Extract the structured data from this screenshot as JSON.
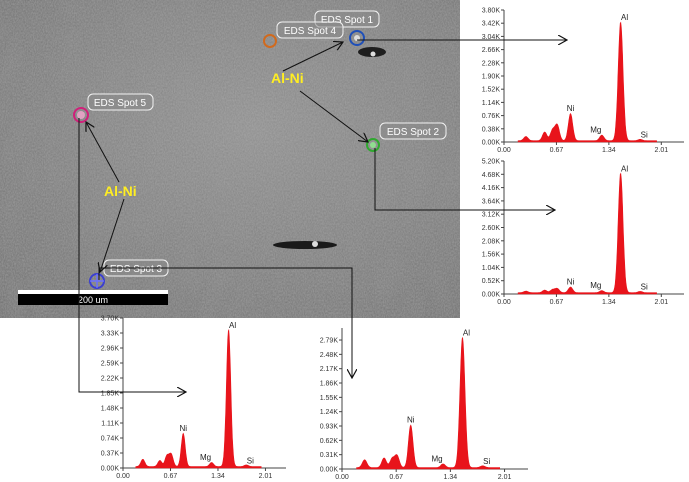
{
  "scale_bar": {
    "label": "200 um"
  },
  "spots": [
    {
      "id": 1,
      "label": "EDS Spot 1",
      "color": "#1f4fb8"
    },
    {
      "id": 2,
      "label": "EDS Spot 2",
      "color": "#2fa82f"
    },
    {
      "id": 3,
      "label": "EDS Spot 3",
      "color": "#3b3fd0"
    },
    {
      "id": 4,
      "label": "EDS Spot 4",
      "color": "#d06a1e"
    },
    {
      "id": 5,
      "label": "EDS Spot 5",
      "color": "#d0207a"
    }
  ],
  "phase_labels": [
    "Al-Ni",
    "Al-Ni"
  ],
  "colors": {
    "phase_label": "#ffee22",
    "spectrum": "#e8141b",
    "arrow": "#111111"
  },
  "chart_data": [
    {
      "type": "area",
      "spot": "EDS Spot 1",
      "y_ticks": [
        "0.00K",
        "0.38K",
        "0.76K",
        "1.14K",
        "1.52K",
        "1.90K",
        "2.28K",
        "2.66K",
        "3.04K",
        "3.42K",
        "3.80K"
      ],
      "ylim": [
        0,
        3.8
      ],
      "x_ticks": [
        "0.00",
        "0.67",
        "1.34",
        "2.01"
      ],
      "xlim": [
        0,
        2.3
      ],
      "peaks": [
        {
          "x": 0.28,
          "y": 0.12
        },
        {
          "x": 0.52,
          "y": 0.25
        },
        {
          "x": 0.62,
          "y": 0.3
        },
        {
          "x": 0.68,
          "y": 0.45
        },
        {
          "x": 0.85,
          "y": 0.78
        },
        {
          "x": 1.25,
          "y": 0.16
        },
        {
          "x": 1.49,
          "y": 3.42
        },
        {
          "x": 1.74,
          "y": 0.04
        }
      ],
      "peak_labels": [
        {
          "text": "Al",
          "x": 1.49,
          "y": 3.42
        },
        {
          "text": "Ni",
          "x": 0.85,
          "y": 0.78
        },
        {
          "text": "Mg",
          "x": 1.25,
          "y": 0.16
        },
        {
          "text": "Si",
          "x": 1.74,
          "y": 0.04
        }
      ]
    },
    {
      "type": "area",
      "spot": "EDS Spot 2",
      "y_ticks": [
        "0.00K",
        "0.52K",
        "1.04K",
        "1.56K",
        "2.08K",
        "2.60K",
        "3.12K",
        "3.64K",
        "4.16K",
        "4.68K",
        "5.20K"
      ],
      "ylim": [
        0,
        5.2
      ],
      "x_ticks": [
        "0.00",
        "0.67",
        "1.34",
        "2.01"
      ],
      "xlim": [
        0,
        2.3
      ],
      "peaks": [
        {
          "x": 0.28,
          "y": 0.06
        },
        {
          "x": 0.52,
          "y": 0.1
        },
        {
          "x": 0.62,
          "y": 0.12
        },
        {
          "x": 0.68,
          "y": 0.16
        },
        {
          "x": 0.85,
          "y": 0.22
        },
        {
          "x": 1.25,
          "y": 0.08
        },
        {
          "x": 1.49,
          "y": 4.68
        },
        {
          "x": 1.74,
          "y": 0.05
        }
      ],
      "peak_labels": [
        {
          "text": "Al",
          "x": 1.49,
          "y": 4.68
        },
        {
          "text": "Ni",
          "x": 0.85,
          "y": 0.22
        },
        {
          "text": "Mg",
          "x": 1.25,
          "y": 0.08
        },
        {
          "text": "Si",
          "x": 1.74,
          "y": 0.05
        }
      ]
    },
    {
      "type": "area",
      "spot": "EDS Spot 5",
      "y_ticks": [
        "0.00K",
        "0.37K",
        "0.74K",
        "1.11K",
        "1.48K",
        "1.85K",
        "2.22K",
        "2.59K",
        "2.96K",
        "3.33K",
        "3.70K"
      ],
      "ylim": [
        0,
        3.7
      ],
      "x_ticks": [
        "0.00",
        "0.67",
        "1.34",
        "2.01"
      ],
      "xlim": [
        0,
        2.3
      ],
      "peaks": [
        {
          "x": 0.28,
          "y": 0.18
        },
        {
          "x": 0.52,
          "y": 0.15
        },
        {
          "x": 0.62,
          "y": 0.26
        },
        {
          "x": 0.68,
          "y": 0.3
        },
        {
          "x": 0.85,
          "y": 0.82
        },
        {
          "x": 1.25,
          "y": 0.1
        },
        {
          "x": 1.49,
          "y": 3.38
        },
        {
          "x": 1.74,
          "y": 0.04
        }
      ],
      "peak_labels": [
        {
          "text": "Al",
          "x": 1.49,
          "y": 3.38
        },
        {
          "text": "Ni",
          "x": 0.85,
          "y": 0.82
        },
        {
          "text": "Mg",
          "x": 1.25,
          "y": 0.1
        },
        {
          "text": "Si",
          "x": 1.74,
          "y": 0.04
        }
      ]
    },
    {
      "type": "area",
      "spot": "EDS Spot 4",
      "y_ticks": [
        "0.00K",
        "0.31K",
        "0.62K",
        "0.93K",
        "1.24K",
        "1.55K",
        "1.86K",
        "2.17K",
        "2.48K",
        "2.79K"
      ],
      "ylim": [
        0,
        3.05
      ],
      "x_ticks": [
        "0.00",
        "0.67",
        "1.34",
        "2.01"
      ],
      "xlim": [
        0,
        2.3
      ],
      "peaks": [
        {
          "x": 0.28,
          "y": 0.17
        },
        {
          "x": 0.52,
          "y": 0.21
        },
        {
          "x": 0.62,
          "y": 0.19
        },
        {
          "x": 0.68,
          "y": 0.26
        },
        {
          "x": 0.85,
          "y": 0.92
        },
        {
          "x": 1.25,
          "y": 0.08
        },
        {
          "x": 1.49,
          "y": 2.82
        },
        {
          "x": 1.74,
          "y": 0.04
        }
      ],
      "peak_labels": [
        {
          "text": "Al",
          "x": 1.49,
          "y": 2.82
        },
        {
          "text": "Ni",
          "x": 0.85,
          "y": 0.92
        },
        {
          "text": "Mg",
          "x": 1.25,
          "y": 0.08
        },
        {
          "text": "Si",
          "x": 1.74,
          "y": 0.04
        }
      ]
    }
  ]
}
